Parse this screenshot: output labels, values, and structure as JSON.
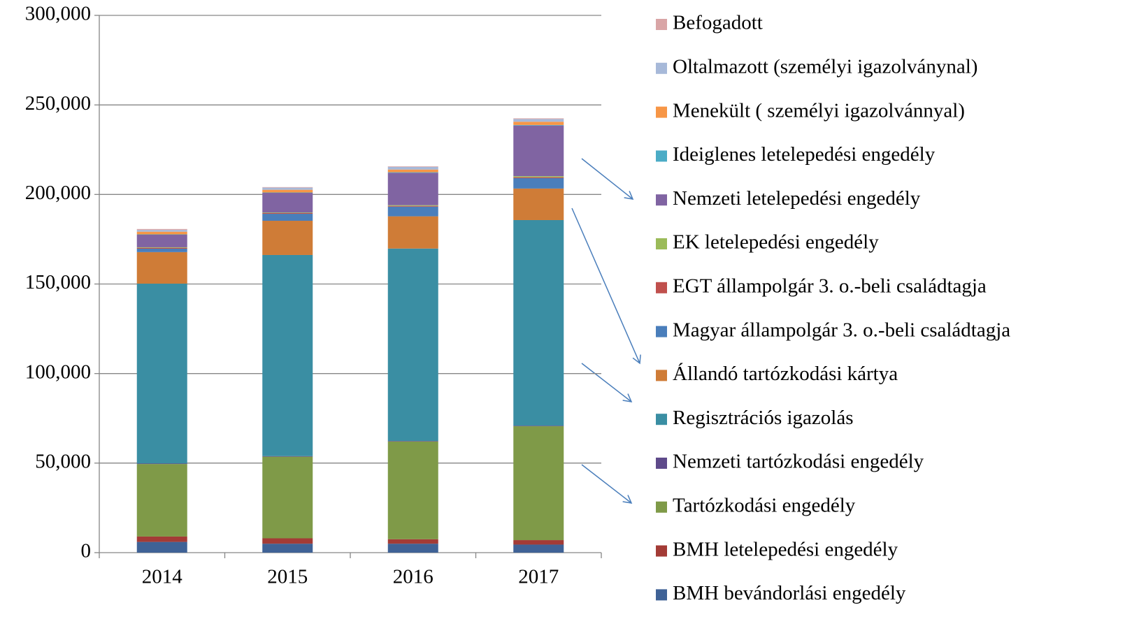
{
  "chart_data": {
    "type": "stacked_bar",
    "categories": [
      "2014",
      "2015",
      "2016",
      "2017"
    ],
    "series": [
      {
        "name": "BMH  bevándorlási engedély",
        "color": "#3f6296",
        "values": [
          6000,
          5000,
          5000,
          4500
        ]
      },
      {
        "name": "BMH letelepedési engedély",
        "color": "#a33b36",
        "values": [
          3000,
          3000,
          2500,
          2500
        ]
      },
      {
        "name": "Tartózkodási engedély",
        "color": "#7f9a48",
        "values": [
          40500,
          45600,
          54600,
          63600
        ]
      },
      {
        "name": "Nemzeti tartózkodási engedély",
        "color": "#5e4a8a",
        "values": [
          300,
          300,
          300,
          300
        ]
      },
      {
        "name": "Regisztrációs igazolás",
        "color": "#3a8ea3",
        "values": [
          100400,
          112300,
          107400,
          114800
        ]
      },
      {
        "name": "Állandó tartózkodási kártya",
        "color": "#cf7c37",
        "values": [
          17600,
          19100,
          18000,
          17600
        ]
      },
      {
        "name": "Magyar állampolgár 3. o.-beli családtagja",
        "color": "#4a7ebb",
        "values": [
          1900,
          3900,
          5400,
          5800
        ]
      },
      {
        "name": "EGT állampolgár 3. o.-beli családtagja",
        "color": "#c0504d",
        "values": [
          500,
          400,
          400,
          500
        ]
      },
      {
        "name": "EK letelepedési engedély",
        "color": "#9bbb59",
        "values": [
          300,
          300,
          400,
          600
        ]
      },
      {
        "name": "Nemzeti letelepedési engedély",
        "color": "#8064a2",
        "values": [
          7000,
          11000,
          18100,
          28300
        ]
      },
      {
        "name": "Ideiglenes letelepedési engedély",
        "color": "#4bacc6",
        "values": [
          200,
          200,
          300,
          300
        ]
      },
      {
        "name": "Menekült ( személyi igazolvánnyal)",
        "color": "#f79646",
        "values": [
          1500,
          1500,
          1500,
          1800
        ]
      },
      {
        "name": "Oltalmazott (személyi igazolványnal)",
        "color": "#a7b9d9",
        "values": [
          1000,
          1200,
          1500,
          1500
        ]
      },
      {
        "name": "Befogadott",
        "color": "#d9a5a6",
        "values": [
          500,
          300,
          300,
          400
        ]
      }
    ],
    "ylim": [
      0,
      300000
    ],
    "yticks": [
      0,
      {
        "value": 50000,
        "label": "50,000"
      },
      {
        "value": 100000,
        "label": "100,000"
      },
      {
        "value": 150000,
        "label": "150,000"
      },
      {
        "value": 200000,
        "label": "200,000"
      },
      {
        "value": 250000,
        "label": "250,000"
      },
      {
        "value": 300000,
        "label": "300,000"
      }
    ],
    "grid": true,
    "legend": "right"
  }
}
